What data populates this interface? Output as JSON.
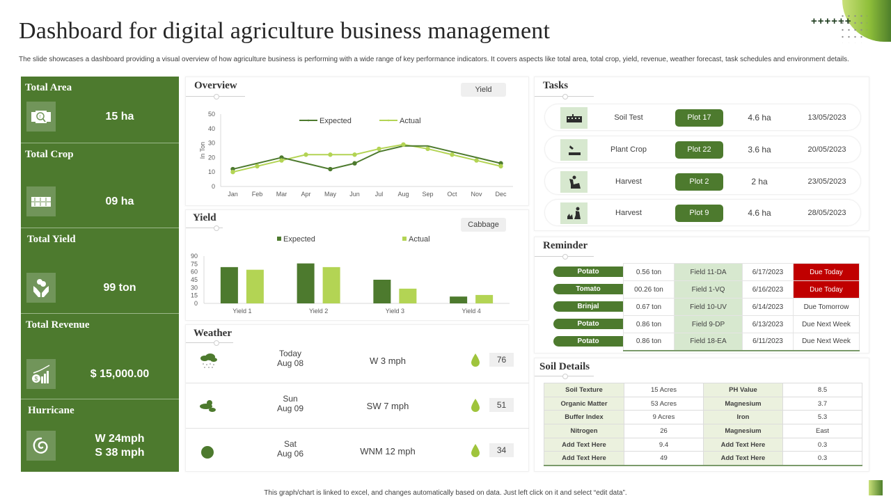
{
  "header": {
    "title": "Dashboard for digital agriculture business management",
    "subtitle": "The slide showcases a dashboard providing a visual overview of how agriculture business is performing with a wide range of key performance indicators. It covers aspects like total area, total crop, yield, revenue, weather forecast, task schedules and environment details."
  },
  "decor": {
    "plus_signs": "++++++"
  },
  "colors": {
    "dark_green": "#4d7a2e",
    "light_green": "#b3d454",
    "pale_green": "#d7e8cf",
    "alert_red": "#c00000"
  },
  "kpis": [
    {
      "title": "Total Area",
      "value": "15 ha",
      "icon": "area-search-icon"
    },
    {
      "title": "Total Crop",
      "value": "09 ha",
      "icon": "crop-rows-icon"
    },
    {
      "title": "Total Yield",
      "value": "99 ton",
      "icon": "hands-coins-icon"
    },
    {
      "title": "Total Revenue",
      "value": "$ 15,000.00",
      "icon": "revenue-growth-icon"
    },
    {
      "title": "Hurricane",
      "value_line1": "W 24mph",
      "value_line2": "S 38 mph",
      "icon": "hurricane-icon"
    }
  ],
  "overview": {
    "title": "Overview",
    "selector": "Yield"
  },
  "yield": {
    "title": "Yield",
    "selector": "Cabbage"
  },
  "chart_data": [
    {
      "type": "line",
      "title": "Overview",
      "x": [
        "Jan",
        "Feb",
        "Mar",
        "Apr",
        "May",
        "Jun",
        "Jul",
        "Aug",
        "Sep",
        "Oct",
        "Nov",
        "Dec"
      ],
      "series": [
        {
          "name": "Expected",
          "color": "#4d7a2e",
          "values": [
            12,
            16,
            20,
            16,
            12,
            16,
            24,
            28,
            28,
            24,
            20,
            16
          ]
        },
        {
          "name": "Actual",
          "color": "#b3d454",
          "values": [
            10,
            14,
            18,
            22,
            22,
            22,
            26,
            29,
            26,
            22,
            18,
            14
          ]
        }
      ],
      "xlabel": "",
      "ylabel": "In Ton",
      "ylim": [
        0,
        50
      ],
      "yticks": [
        0,
        10,
        20,
        30,
        40,
        50
      ],
      "legend_position": "top",
      "grid": false
    },
    {
      "type": "bar",
      "title": "Yield",
      "categories": [
        "Yield 1",
        "Yield 2",
        "Yield 3",
        "Yield 4"
      ],
      "series": [
        {
          "name": "Expected",
          "color": "#4d7a2e",
          "values": [
            69,
            76,
            45,
            13
          ]
        },
        {
          "name": "Actual",
          "color": "#b3d454",
          "values": [
            64,
            69,
            28,
            16
          ]
        }
      ],
      "xlabel": "",
      "ylabel": "",
      "ylim": [
        0,
        90
      ],
      "yticks": [
        0,
        15,
        30,
        45,
        60,
        75,
        90
      ],
      "legend_position": "top",
      "grid": false
    }
  ],
  "weather": {
    "title": "Weather",
    "rows": [
      {
        "icon": "rain-cloud-icon",
        "day": "Today",
        "date": "Aug 08",
        "wind": "W 3 mph",
        "humidity": "76"
      },
      {
        "icon": "partly-cloudy-icon",
        "day": "Sun",
        "date": "Aug 09",
        "wind": "SW 7 mph",
        "humidity": "51"
      },
      {
        "icon": "sun-icon",
        "day": "Sat",
        "date": "Aug 06",
        "wind": "WNM 12 mph",
        "humidity": "34"
      }
    ]
  },
  "tasks": {
    "title": "Tasks",
    "rows": [
      {
        "icon": "soil-test-icon",
        "name": "Soil Test",
        "plot": "Plot 17",
        "area": "4.6 ha",
        "date": "13/05/2023"
      },
      {
        "icon": "plant-crop-icon",
        "name": "Plant Crop",
        "plot": "Plot 22",
        "area": "3.6 ha",
        "date": "20/05/2023"
      },
      {
        "icon": "harvest-icon",
        "name": "Harvest",
        "plot": "Plot 2",
        "area": "2 ha",
        "date": "23/05/2023"
      },
      {
        "icon": "gardening-icon",
        "name": "Harvest",
        "plot": "Plot 9",
        "area": "4.6 ha",
        "date": "28/05/2023"
      }
    ]
  },
  "reminder": {
    "title": "Reminder",
    "rows": [
      {
        "crop": "Potato",
        "qty": "0.56 ton",
        "field": "Field 11-DA",
        "date": "6/17/2023",
        "status": "Due Today",
        "urgent": true
      },
      {
        "crop": "Tomato",
        "qty": "00.26 ton",
        "field": "Field 1-VQ",
        "date": "6/16/2023",
        "status": "Due Today",
        "urgent": true
      },
      {
        "crop": "Brinjal",
        "qty": "0.67 ton",
        "field": "Field 10-UV",
        "date": "6/14/2023",
        "status": "Due Tomorrow",
        "urgent": false
      },
      {
        "crop": "Potato",
        "qty": "0.86 ton",
        "field": "Field 9-DP",
        "date": "6/13/2023",
        "status": "Due Next Week",
        "urgent": false
      },
      {
        "crop": "Potato",
        "qty": "0.86 ton",
        "field": "Field 18-EA",
        "date": "6/11/2023",
        "status": "Due Next Week",
        "urgent": false
      }
    ]
  },
  "soil": {
    "title": "Soil Details",
    "rows": [
      [
        "Soil Texture",
        "15 Acres",
        "PH Value",
        "8.5"
      ],
      [
        "Organic Matter",
        "53 Acres",
        "Magnesium",
        "3.7"
      ],
      [
        "Buffer Index",
        "9 Acres",
        "Iron",
        "5.3"
      ],
      [
        "Nitrogen",
        "26",
        "Magnesium",
        "East"
      ],
      [
        "Add Text Here",
        "9.4",
        "Add Text Here",
        "0.3"
      ],
      [
        "Add Text Here",
        "49",
        "Add Text Here",
        "0.3"
      ]
    ]
  },
  "footer": {
    "note": "This graph/chart is linked to excel, and changes automatically based on data. Just left click on it and select “edit data”."
  }
}
